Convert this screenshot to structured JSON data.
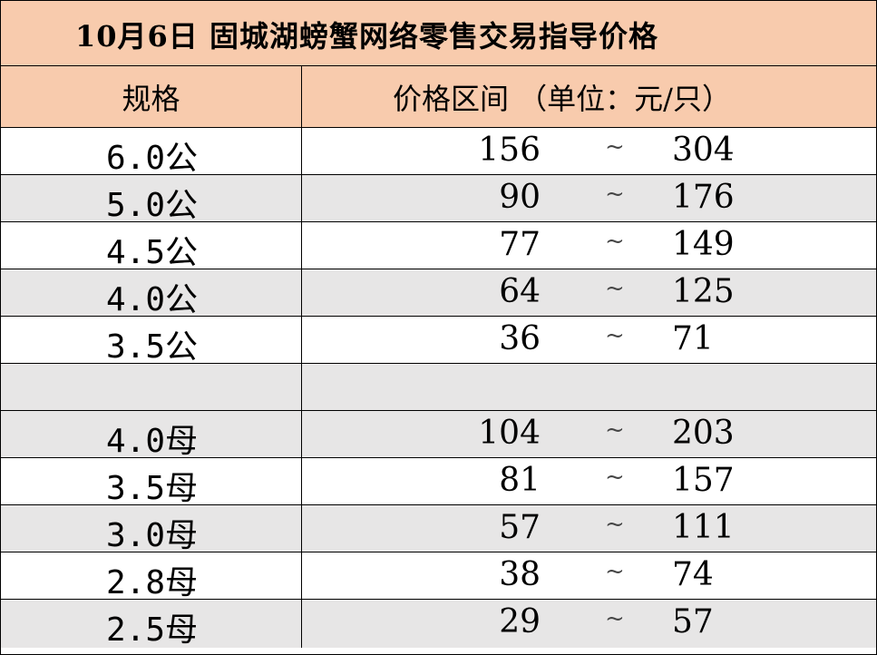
{
  "title": "10月6日 固城湖螃蟹网络零售交易指导价格",
  "header": {
    "spec": "规格",
    "range": "价格区间 （单位：元/只）"
  },
  "colors": {
    "header_bg": "#f8cbad",
    "shaded_row": "#e7e6e6",
    "border": "#000000"
  },
  "rows": [
    {
      "spec": "6.0公",
      "low": "156",
      "sep": "~",
      "high": "304"
    },
    {
      "spec": "5.0公",
      "low": "90",
      "sep": "~",
      "high": "176"
    },
    {
      "spec": "4.5公",
      "low": "77",
      "sep": "~",
      "high": "149"
    },
    {
      "spec": "4.0公",
      "low": "64",
      "sep": "~",
      "high": "125"
    },
    {
      "spec": "3.5公",
      "low": "36",
      "sep": "~",
      "high": "71"
    },
    {
      "spec": "",
      "low": "",
      "sep": "",
      "high": ""
    },
    {
      "spec": "4.0母",
      "low": "104",
      "sep": "~",
      "high": "203"
    },
    {
      "spec": "3.5母",
      "low": "81",
      "sep": "~",
      "high": "157"
    },
    {
      "spec": "3.0母",
      "low": "57",
      "sep": "~",
      "high": "111"
    },
    {
      "spec": "2.8母",
      "low": "38",
      "sep": "~",
      "high": "74"
    },
    {
      "spec": "2.5母",
      "low": "29",
      "sep": "~",
      "high": "57"
    }
  ]
}
